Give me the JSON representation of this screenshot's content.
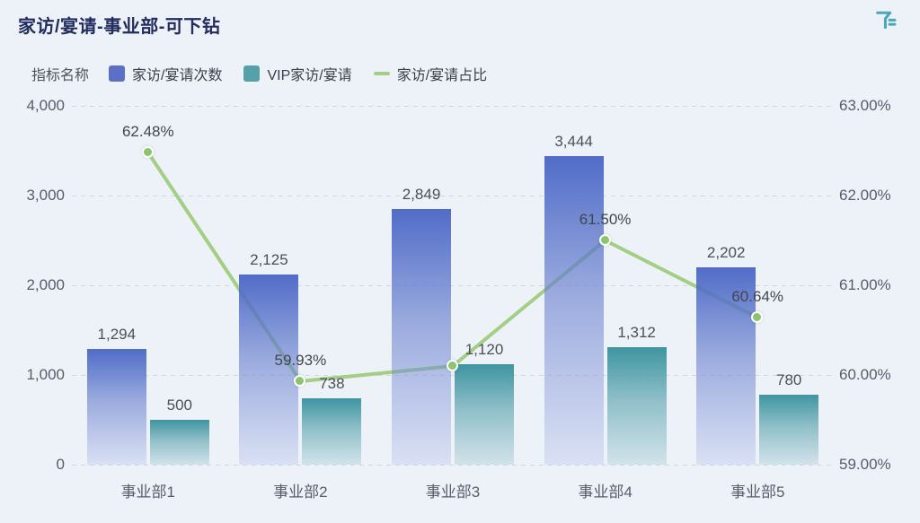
{
  "title": "家访/宴请-事业部-可下钻",
  "header": {
    "icon": "filter-funnel-icon",
    "icon_color": "#4ba7b8"
  },
  "legend": {
    "name_label": "指标名称",
    "items": [
      {
        "label": "家访/宴请次数",
        "type": "bar",
        "color": "#5b70c4"
      },
      {
        "label": "VIP家访/宴请",
        "type": "bar",
        "color": "#55a0ab"
      },
      {
        "label": "家访/宴请占比",
        "type": "line",
        "color": "#a3cf85"
      }
    ]
  },
  "chart_data": {
    "type": "bar+line",
    "categories": [
      "事业部1",
      "事业部2",
      "事业部3",
      "事业部4",
      "事业部5"
    ],
    "series": [
      {
        "name": "家访/宴请次数",
        "type": "bar",
        "axis": "left",
        "color": "#5b70c4",
        "values": [
          1294,
          2125,
          2849,
          3444,
          2202
        ],
        "labels": [
          "1,294",
          "2,125",
          "2,849",
          "3,444",
          "2,202"
        ]
      },
      {
        "name": "VIP家访/宴请",
        "type": "bar",
        "axis": "left",
        "color": "#55a0ab",
        "values": [
          500,
          738,
          1120,
          1312,
          780
        ],
        "labels": [
          "500",
          "738",
          "1,120",
          "1,312",
          "780"
        ]
      },
      {
        "name": "家访/宴请占比",
        "type": "line",
        "axis": "right",
        "color": "#a3cf85",
        "values": [
          62.48,
          59.93,
          60.1,
          61.5,
          60.64
        ],
        "labels": [
          "62.48%",
          "59.93%",
          null,
          "61.50%",
          "60.64%"
        ]
      }
    ],
    "left_axis": {
      "min": 0,
      "max": 4000,
      "ticks": [
        "4,000",
        "3,000",
        "2,000",
        "1,000",
        "0"
      ]
    },
    "right_axis": {
      "min": 59,
      "max": 63,
      "ticks": [
        "63.00%",
        "62.00%",
        "61.00%",
        "60.00%",
        "59.00%"
      ]
    },
    "grid": "dashed-horizontal",
    "legend_position": "top-left"
  },
  "colors": {
    "background": "#edf1f8",
    "title": "#222c5e",
    "gridline": "#d2d6de",
    "axis_text": "#565d6d",
    "value_text": "#4b4f58",
    "line_dot": "#8cc46e"
  }
}
